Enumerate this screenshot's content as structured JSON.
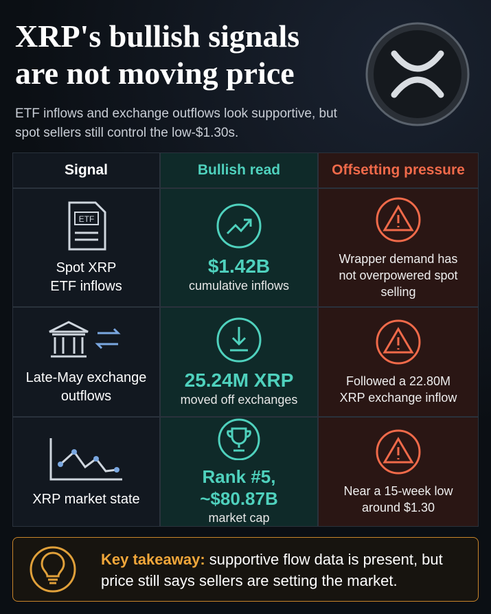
{
  "header": {
    "title": "XRP's bullish signals are not moving price",
    "subtitle": "ETF inflows and exchange outflows look supportive, but spot sellers still control the low-$1.30s."
  },
  "table": {
    "headers": [
      "Signal",
      "Bullish read",
      "Offsetting pressure"
    ],
    "rows": [
      {
        "signal": "Spot XRP ETF inflows",
        "bullish_value": "$1.42B",
        "bullish_note": "cumulative inflows",
        "pressure": "Wrapper demand has not overpowered spot selling"
      },
      {
        "signal": "Late-May exchange outflows",
        "bullish_value": "25.24M XRP",
        "bullish_note": "moved off exchanges",
        "pressure": "Followed a 22.80M XRP exchange inflow"
      },
      {
        "signal": "XRP market state",
        "bullish_value": "Rank #5, ~$80.87B",
        "bullish_note": "market cap",
        "pressure": "Near a 15-week low around $1.30"
      }
    ]
  },
  "takeaway": {
    "label": "Key takeaway:",
    "text": "supportive flow data is present, but price still says sellers are setting the market."
  }
}
